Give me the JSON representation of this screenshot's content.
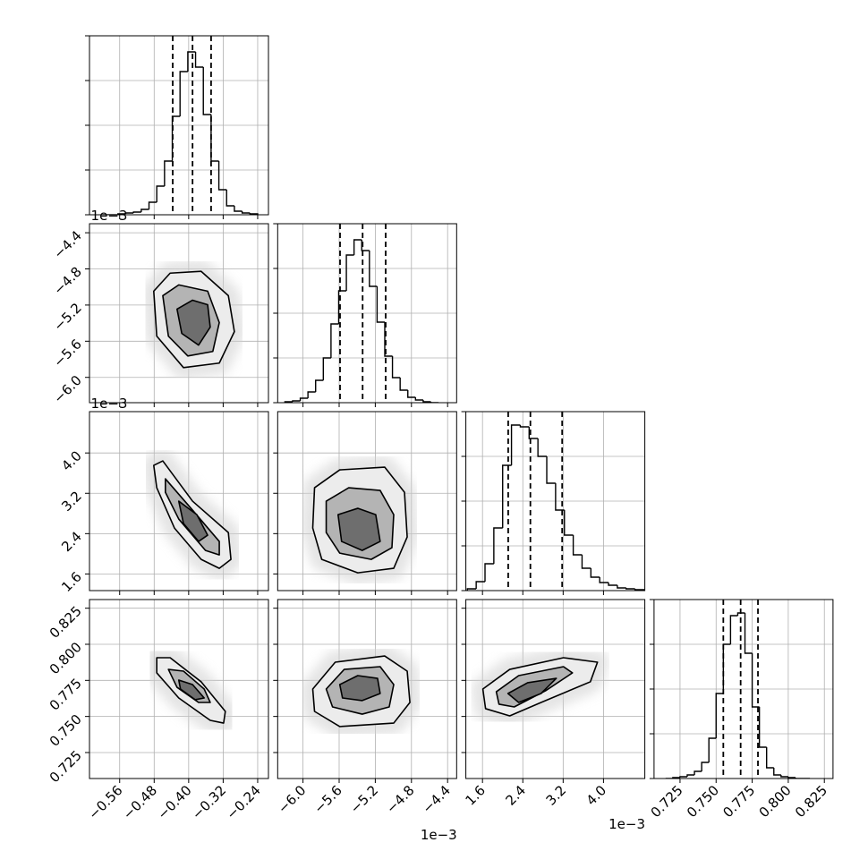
{
  "chart_data": {
    "type": "corner",
    "line_color": "#000000",
    "grid_color": "#b0b0b0",
    "contour_fills": [
      "#ececec",
      "#b4b4b4",
      "#6e6e6e"
    ],
    "variables": [
      {
        "lim": [
          -0.63,
          -0.215
        ],
        "ticks": [
          {
            "value": -0.56,
            "label": "−0.56"
          },
          {
            "value": -0.48,
            "label": "−0.48"
          },
          {
            "value": -0.4,
            "label": "−0.40"
          },
          {
            "value": -0.32,
            "label": "−0.32"
          },
          {
            "value": -0.24,
            "label": "−0.24"
          }
        ],
        "quantiles": [
          -0.437,
          -0.391,
          -0.348
        ],
        "hist": {
          "bins": [
            -0.6,
            -0.582,
            -0.564,
            -0.546,
            -0.528,
            -0.51,
            -0.492,
            -0.474,
            -0.456,
            -0.438,
            -0.42,
            -0.402,
            -0.384,
            -0.366,
            -0.348,
            -0.33,
            -0.312,
            -0.294,
            -0.276,
            -0.258,
            -0.24
          ],
          "counts": [
            0,
            0,
            1,
            2,
            3,
            6,
            14,
            32,
            60,
            110,
            160,
            182,
            165,
            112,
            60,
            28,
            10,
            4,
            2,
            1
          ],
          "ylim": [
            0,
            200
          ],
          "ygrid": [
            0,
            50,
            100,
            150,
            200
          ]
        }
      },
      {
        "lim": [
          -6.28,
          -4.3
        ],
        "offset_label": "1e−3",
        "ticks": [
          {
            "value": -6,
            "label": "−6.0"
          },
          {
            "value": -5.6,
            "label": "−5.6"
          },
          {
            "value": -5.2,
            "label": "−5.2"
          },
          {
            "value": -4.8,
            "label": "−4.8"
          },
          {
            "value": -4.4,
            "label": "−4.4"
          }
        ],
        "quantiles": [
          -5.59,
          -5.34,
          -5.085
        ],
        "hist": {
          "bins": [
            -6.2,
            -6.115,
            -6.03,
            -5.945,
            -5.86,
            -5.775,
            -5.69,
            -5.605,
            -5.52,
            -5.435,
            -5.35,
            -5.265,
            -5.18,
            -5.095,
            -5.01,
            -4.925,
            -4.84,
            -4.755,
            -4.67,
            -4.585,
            -4.5
          ],
          "counts": [
            1,
            2,
            5,
            12,
            25,
            50,
            88,
            125,
            165,
            182,
            170,
            130,
            90,
            52,
            28,
            14,
            6,
            3,
            1,
            0
          ],
          "ylim": [
            0,
            200
          ],
          "ygrid": [
            0,
            50,
            100,
            150,
            200
          ]
        }
      },
      {
        "lim": [
          1.27,
          4.82
        ],
        "offset_label": "1e−3",
        "ticks": [
          1.6,
          2.4,
          3.2,
          {
            "value": 4,
            "label": "4.0"
          }
        ],
        "quantiles": [
          2.11,
          2.55,
          3.18
        ],
        "hist": {
          "bins": [
            1.3,
            1.475,
            1.65,
            1.825,
            2.0,
            2.175,
            2.35,
            2.525,
            2.7,
            2.875,
            3.05,
            3.225,
            3.4,
            3.575,
            3.75,
            3.925,
            4.1,
            4.275,
            4.45,
            4.625,
            4.8
          ],
          "counts": [
            2,
            10,
            30,
            70,
            140,
            185,
            183,
            170,
            150,
            120,
            90,
            62,
            40,
            25,
            15,
            9,
            6,
            3,
            2,
            1
          ],
          "ylim": [
            0,
            200
          ],
          "ygrid": [
            0,
            50,
            100,
            150,
            200
          ]
        }
      },
      {
        "lim": [
          0.707,
          0.831
        ],
        "ticks": [
          0.725,
          {
            "value": 0.75,
            "label": "0.750"
          },
          0.775,
          {
            "value": 0.8,
            "label": "0.800"
          },
          0.825
        ],
        "quantiles": [
          0.755,
          0.767,
          0.779
        ],
        "hist": {
          "bins": [
            0.715,
            0.72,
            0.725,
            0.73,
            0.735,
            0.74,
            0.745,
            0.75,
            0.755,
            0.76,
            0.765,
            0.77,
            0.775,
            0.78,
            0.785,
            0.79,
            0.795,
            0.8,
            0.805,
            0.81,
            0.815
          ],
          "counts": [
            0,
            1,
            2,
            4,
            8,
            18,
            45,
            95,
            150,
            182,
            185,
            140,
            80,
            35,
            12,
            4,
            2,
            1,
            0,
            0
          ],
          "ylim": [
            0,
            200
          ],
          "ygrid": [
            0,
            50,
            100,
            150,
            200
          ]
        }
      }
    ],
    "contours": [
      {
        "levels": [
          {
            "x": [
              -0.481,
              -0.443,
              -0.371,
              -0.308,
              -0.294,
              -0.329,
              -0.412,
              -0.474
            ],
            "y": [
              -5.046,
              -4.847,
              -4.827,
              -5.096,
              -5.494,
              -5.842,
              -5.892,
              -5.544
            ]
          },
          {
            "x": [
              -0.46,
              -0.423,
              -0.356,
              -0.329,
              -0.344,
              -0.402,
              -0.447
            ],
            "y": [
              -5.096,
              -4.977,
              -5.046,
              -5.394,
              -5.713,
              -5.763,
              -5.544
            ]
          },
          {
            "x": [
              -0.427,
              -0.391,
              -0.356,
              -0.35,
              -0.377,
              -0.416
            ],
            "y": [
              -5.245,
              -5.146,
              -5.196,
              -5.444,
              -5.643,
              -5.514
            ]
          }
        ]
      },
      {
        "levels": [
          {
            "x": [
              -0.481,
              -0.46,
              -0.391,
              -0.308,
              -0.302,
              -0.329,
              -0.371,
              -0.433,
              -0.474
            ],
            "y": [
              3.754,
              3.843,
              3.044,
              2.422,
              1.889,
              1.712,
              1.889,
              2.511,
              3.31
            ]
          },
          {
            "x": [
              -0.454,
              -0.391,
              -0.329,
              -0.329,
              -0.361,
              -0.423,
              -0.454
            ],
            "y": [
              3.488,
              2.866,
              2.245,
              1.978,
              2.067,
              2.689,
              3.221
            ]
          },
          {
            "x": [
              -0.423,
              -0.381,
              -0.356,
              -0.377,
              -0.412
            ],
            "y": [
              3.044,
              2.777,
              2.369,
              2.245,
              2.6
            ]
          }
        ]
      },
      {
        "levels": [
          {
            "x": [
              -5.872,
              -5.593,
              -5.096,
              -4.877,
              -4.847,
              -4.996,
              -5.394,
              -5.792,
              -5.892
            ],
            "y": [
              3.31,
              3.665,
              3.719,
              3.221,
              2.333,
              1.712,
              1.623,
              1.889,
              2.511
            ]
          },
          {
            "x": [
              -5.743,
              -5.494,
              -5.146,
              -4.996,
              -5.016,
              -5.245,
              -5.593,
              -5.743
            ],
            "y": [
              3.044,
              3.31,
              3.257,
              2.777,
              2.12,
              1.889,
              2.013,
              2.422
            ]
          },
          {
            "x": [
              -5.612,
              -5.394,
              -5.195,
              -5.146,
              -5.345,
              -5.573
            ],
            "y": [
              2.777,
              2.902,
              2.777,
              2.245,
              2.067,
              2.245
            ]
          }
        ]
      },
      {
        "levels": [
          {
            "x": [
              -0.474,
              -0.443,
              -0.371,
              -0.315,
              -0.319,
              -0.35,
              -0.423,
              -0.474
            ],
            "y": [
              0.7907,
              0.7907,
              0.774,
              0.7535,
              0.7454,
              0.7473,
              0.7628,
              0.7802
            ]
          },
          {
            "x": [
              -0.447,
              -0.412,
              -0.364,
              -0.35,
              -0.377,
              -0.427
            ],
            "y": [
              0.7826,
              0.7814,
              0.769,
              0.7597,
              0.7597,
              0.7702
            ]
          },
          {
            "x": [
              -0.423,
              -0.391,
              -0.364,
              -0.385,
              -0.419
            ],
            "y": [
              0.7752,
              0.7721,
              0.7628,
              0.7616,
              0.769
            ]
          }
        ]
      },
      {
        "levels": [
          {
            "x": [
              -5.892,
              -5.643,
              -5.096,
              -4.847,
              -4.817,
              -4.996,
              -5.593,
              -5.872
            ],
            "y": [
              0.769,
              0.7876,
              0.7919,
              0.7814,
              0.7597,
              0.7454,
              0.743,
              0.7535
            ]
          },
          {
            "x": [
              -5.743,
              -5.544,
              -5.146,
              -4.996,
              -5.046,
              -5.345,
              -5.673
            ],
            "y": [
              0.769,
              0.7826,
              0.7845,
              0.7721,
              0.7566,
              0.7516,
              0.7566
            ]
          },
          {
            "x": [
              -5.593,
              -5.394,
              -5.175,
              -5.146,
              -5.345,
              -5.563
            ],
            "y": [
              0.7721,
              0.7783,
              0.7764,
              0.7659,
              0.761,
              0.7628
            ]
          }
        ]
      },
      {
        "levels": [
          {
            "x": [
              1.607,
              2.14,
              3.206,
              3.881,
              3.739,
              2.762,
              2.14,
              1.661
            ],
            "y": [
              0.769,
              0.7826,
              0.7907,
              0.7876,
              0.774,
              0.7597,
              0.7504,
              0.7554
            ]
          },
          {
            "x": [
              1.874,
              2.318,
              3.206,
              3.384,
              2.851,
              2.229,
              1.927
            ],
            "y": [
              0.7671,
              0.7783,
              0.7845,
              0.7802,
              0.7678,
              0.7566,
              0.7585
            ]
          },
          {
            "x": [
              2.105,
              2.496,
              3.064,
              2.762,
              2.318
            ],
            "y": [
              0.7659,
              0.7734,
              0.7764,
              0.7659,
              0.7597
            ]
          }
        ]
      }
    ]
  }
}
